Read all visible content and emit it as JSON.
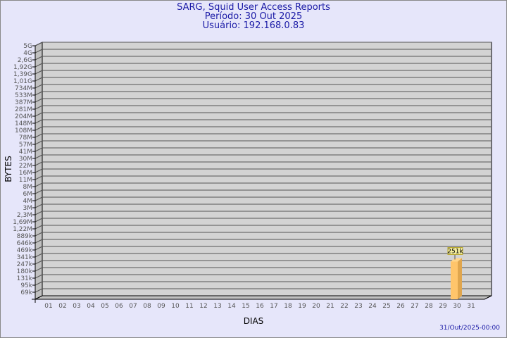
{
  "chart_data": {
    "type": "bar",
    "title": "SARG, Squid User Access Reports",
    "subtitle_period": "Período: 30 Out 2025",
    "subtitle_user": "Usuário: 192.168.0.83",
    "xlabel": "DIAS",
    "ylabel": "BYTES",
    "y_scale": "log",
    "y_ticks": [
      "5G",
      "4G",
      "2,6G",
      "1,92G",
      "1,39G",
      "1,01G",
      "734M",
      "533M",
      "387M",
      "281M",
      "204M",
      "148M",
      "108M",
      "78M",
      "57M",
      "41M",
      "30M",
      "22M",
      "16M",
      "11M",
      "8M",
      "6M",
      "4M",
      "3M",
      "2,3M",
      "1,69M",
      "1,22M",
      "889k",
      "646k",
      "469k",
      "341k",
      "247k",
      "180k",
      "131k",
      "95k",
      "69k"
    ],
    "categories": [
      "01",
      "02",
      "03",
      "04",
      "05",
      "06",
      "07",
      "08",
      "09",
      "10",
      "11",
      "12",
      "13",
      "14",
      "15",
      "16",
      "17",
      "18",
      "19",
      "20",
      "21",
      "22",
      "23",
      "24",
      "25",
      "26",
      "27",
      "28",
      "29",
      "30",
      "31"
    ],
    "bars": [
      {
        "category": "30",
        "value": 251000,
        "label": "251k"
      }
    ],
    "grid": true,
    "colors": {
      "bar_front": "#ffc56b",
      "bar_side": "#e0a64e",
      "wall": "#d3d3d3",
      "background": "#e6e6fa",
      "title": "#1a1aa6"
    }
  },
  "footer": {
    "timestamp": "31/Out/2025-00:00"
  }
}
